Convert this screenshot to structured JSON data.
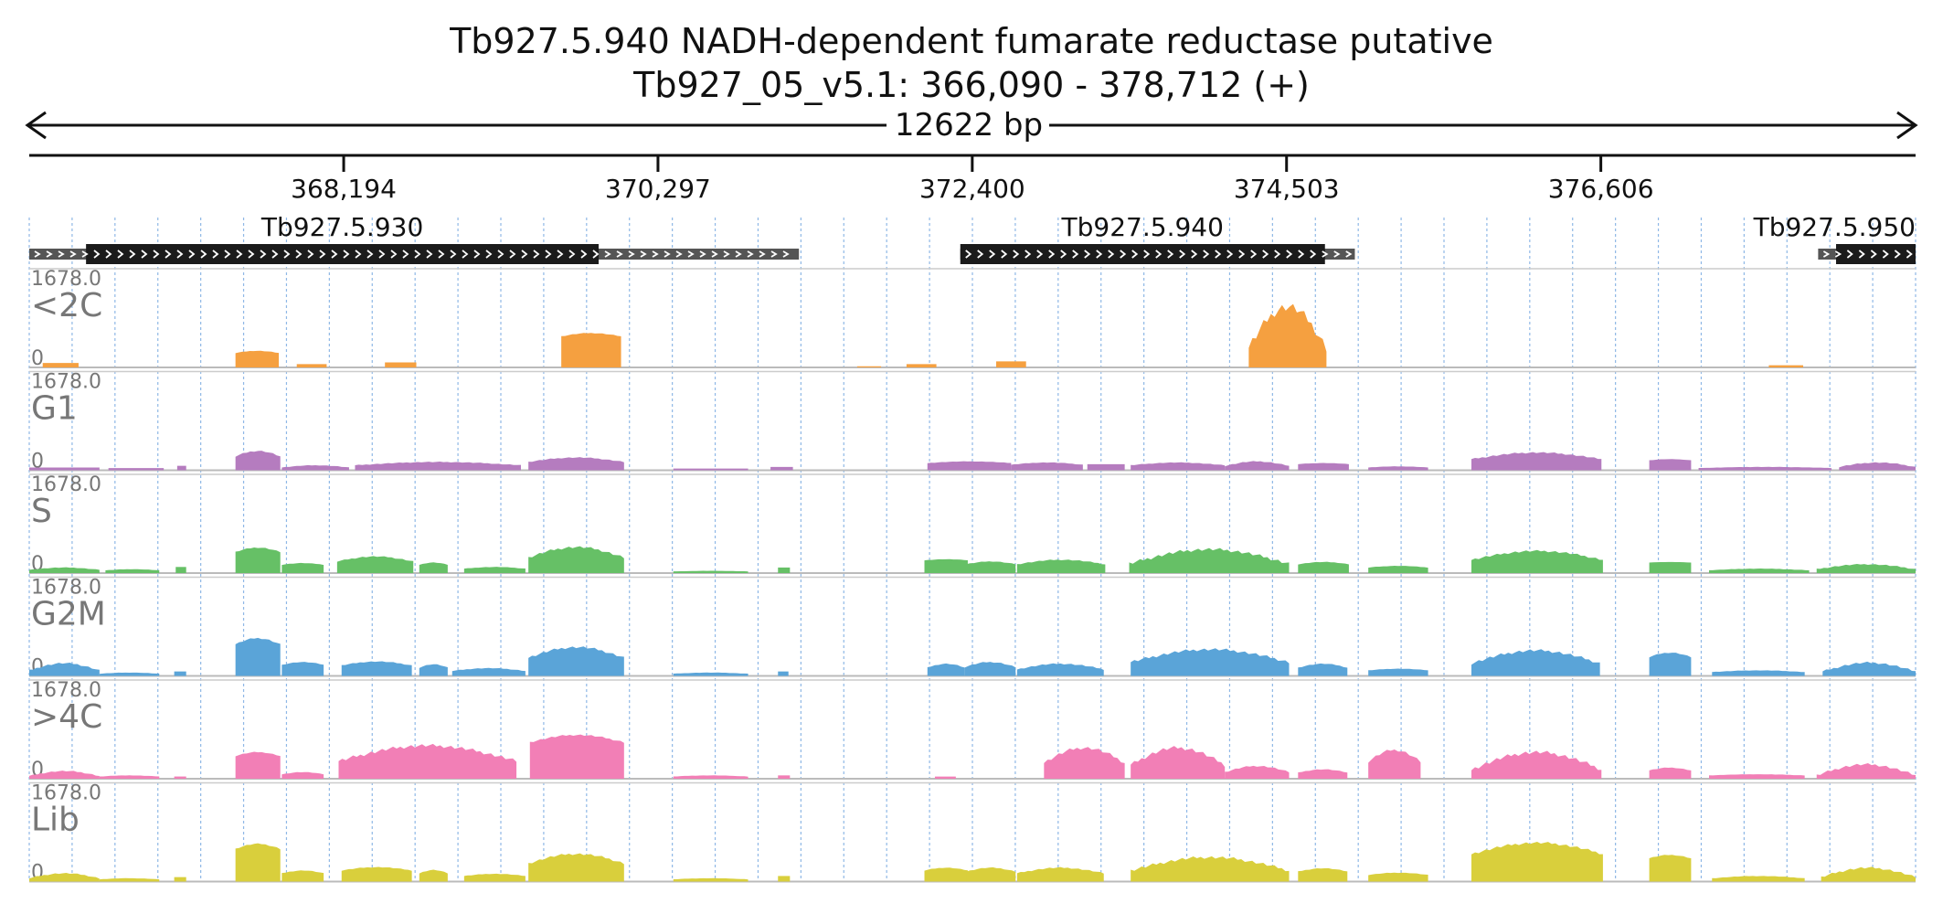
{
  "title_line1": "Tb927.5.940  NADH-dependent fumarate reductase  putative",
  "title_line2": "Tb927_05_v5.1: 366,090 - 378,712 (+)",
  "span_label": "12622 bp",
  "chart_data": {
    "type": "area",
    "region": {
      "chromosome": "Tb927_05_v5.1",
      "start": 366090,
      "end": 378712,
      "strand": "+"
    },
    "ticks": [
      368194,
      370297,
      372400,
      374503,
      376606
    ],
    "tick_labels": [
      "368,194",
      "370,297",
      "372,400",
      "374,503",
      "376,606"
    ],
    "genes": [
      {
        "name": "Tb927.5.930",
        "utr_start": 366090,
        "cds_start": 366470,
        "cds_end": 369900,
        "utr_end": 371240
      },
      {
        "name": "Tb927.5.940",
        "utr_start": 372320,
        "cds_start": 372320,
        "cds_end": 374760,
        "utr_end": 374960
      },
      {
        "name": "Tb927.5.950",
        "utr_start": 378060,
        "cds_start": 378180,
        "cds_end": 378712,
        "utr_end": 378712
      }
    ],
    "tracks": [
      {
        "name": "<2C",
        "max_label": "1678.0",
        "min_label": "0",
        "color": "#f5a040"
      },
      {
        "name": "G1",
        "max_label": "1678.0",
        "min_label": "0",
        "color": "#b57cbf"
      },
      {
        "name": "S",
        "max_label": "1678.0",
        "min_label": "0",
        "color": "#66c066"
      },
      {
        "name": "G2M",
        "max_label": "1678.0",
        "min_label": "0",
        "color": "#5aa4d8"
      },
      {
        "name": ">4C",
        "max_label": "1678.0",
        "min_label": "0",
        "color": "#f27fb6"
      },
      {
        "name": "Lib",
        "max_label": "1678.0",
        "min_label": "0",
        "color": "#d9cf3c"
      }
    ],
    "coverage": [
      [
        [
          366180,
          366420,
          80,
          80
        ],
        [
          367470,
          367760,
          260,
          300
        ],
        [
          367880,
          368080,
          60,
          60
        ],
        [
          368470,
          368680,
          90,
          90
        ],
        [
          369650,
          370050,
          560,
          620
        ],
        [
          371630,
          371790,
          20,
          20
        ],
        [
          371960,
          372160,
          60,
          60
        ],
        [
          372560,
          372760,
          110,
          110
        ],
        [
          374250,
          374770,
          360,
          1100
        ],
        [
          377730,
          377960,
          40,
          40
        ]
      ],
      [
        [
          366090,
          366560,
          50,
          50
        ],
        [
          366620,
          366990,
          40,
          40
        ],
        [
          367080,
          367140,
          80,
          80
        ],
        [
          367470,
          367770,
          250,
          350
        ],
        [
          367780,
          368230,
          50,
          90
        ],
        [
          368270,
          369380,
          90,
          150
        ],
        [
          369430,
          370070,
          150,
          230
        ],
        [
          370400,
          370900,
          30,
          30
        ],
        [
          371050,
          371200,
          60,
          60
        ],
        [
          372100,
          372660,
          130,
          160
        ],
        [
          372660,
          373140,
          100,
          140
        ],
        [
          373170,
          373420,
          110,
          110
        ],
        [
          373460,
          374090,
          90,
          140
        ],
        [
          374090,
          374520,
          80,
          160
        ],
        [
          374580,
          374920,
          110,
          130
        ],
        [
          375050,
          375450,
          50,
          70
        ],
        [
          375740,
          376610,
          200,
          320
        ],
        [
          376930,
          377210,
          180,
          200
        ],
        [
          377260,
          378150,
          40,
          60
        ],
        [
          378200,
          378712,
          60,
          140
        ]
      ],
      [
        [
          366090,
          366560,
          60,
          100
        ],
        [
          366600,
          366960,
          50,
          70
        ],
        [
          367070,
          367140,
          110,
          110
        ],
        [
          367470,
          367770,
          380,
          460
        ],
        [
          367780,
          368060,
          150,
          180
        ],
        [
          368150,
          368660,
          210,
          300
        ],
        [
          368700,
          368890,
          150,
          190
        ],
        [
          369000,
          369410,
          80,
          110
        ],
        [
          369430,
          370070,
          280,
          470
        ],
        [
          370400,
          370900,
          30,
          40
        ],
        [
          371100,
          371180,
          100,
          100
        ],
        [
          372080,
          372370,
          230,
          250
        ],
        [
          372360,
          372690,
          160,
          210
        ],
        [
          372700,
          373290,
          160,
          240
        ],
        [
          373450,
          374520,
          170,
          430
        ],
        [
          374580,
          374920,
          160,
          200
        ],
        [
          375050,
          375450,
          100,
          130
        ],
        [
          375740,
          376620,
          240,
          400
        ],
        [
          376930,
          377210,
          190,
          200
        ],
        [
          377330,
          378000,
          50,
          80
        ],
        [
          378050,
          378712,
          70,
          160
        ]
      ],
      [
        [
          366090,
          366560,
          100,
          230
        ],
        [
          366560,
          366960,
          40,
          60
        ],
        [
          367060,
          367140,
          80,
          80
        ],
        [
          367470,
          367770,
          570,
          680
        ],
        [
          367780,
          368060,
          200,
          250
        ],
        [
          368180,
          368650,
          190,
          260
        ],
        [
          368700,
          368890,
          150,
          210
        ],
        [
          368920,
          369410,
          90,
          140
        ],
        [
          369430,
          370070,
          330,
          520
        ],
        [
          370400,
          370900,
          40,
          60
        ],
        [
          371100,
          371170,
          80,
          80
        ],
        [
          372100,
          372350,
          150,
          220
        ],
        [
          372350,
          372690,
          160,
          250
        ],
        [
          372700,
          373280,
          120,
          220
        ],
        [
          373460,
          374520,
          250,
          480
        ],
        [
          374580,
          374910,
          150,
          220
        ],
        [
          375050,
          375450,
          100,
          130
        ],
        [
          375740,
          376600,
          230,
          460
        ],
        [
          376930,
          377210,
          340,
          420
        ],
        [
          377350,
          377970,
          70,
          100
        ],
        [
          378090,
          378712,
          80,
          240
        ]
      ],
      [
        [
          366090,
          366560,
          50,
          140
        ],
        [
          366560,
          366960,
          40,
          60
        ],
        [
          367060,
          367140,
          40,
          40
        ],
        [
          367470,
          367770,
          410,
          480
        ],
        [
          367780,
          368060,
          80,
          120
        ],
        [
          368160,
          369350,
          320,
          600
        ],
        [
          369440,
          370070,
          660,
          790
        ],
        [
          370400,
          370900,
          40,
          60
        ],
        [
          371100,
          371180,
          60,
          60
        ],
        [
          372150,
          372290,
          40,
          40
        ],
        [
          372880,
          373420,
          290,
          560
        ],
        [
          373460,
          374090,
          250,
          560
        ],
        [
          374090,
          374520,
          120,
          230
        ],
        [
          374580,
          374910,
          110,
          170
        ],
        [
          375050,
          375400,
          310,
          520
        ],
        [
          375740,
          376610,
          170,
          480
        ],
        [
          376930,
          377210,
          150,
          200
        ],
        [
          377330,
          377970,
          60,
          80
        ],
        [
          378050,
          378712,
          60,
          260
        ]
      ],
      [
        [
          366090,
          366560,
          60,
          150
        ],
        [
          366560,
          366960,
          40,
          60
        ],
        [
          367060,
          367140,
          80,
          80
        ],
        [
          367470,
          367770,
          590,
          680
        ],
        [
          367780,
          368060,
          150,
          200
        ],
        [
          368180,
          368650,
          200,
          260
        ],
        [
          368700,
          368890,
          150,
          210
        ],
        [
          369000,
          369410,
          100,
          140
        ],
        [
          369430,
          370070,
          330,
          500
        ],
        [
          370400,
          370900,
          40,
          60
        ],
        [
          371100,
          371180,
          100,
          100
        ],
        [
          372080,
          372370,
          200,
          250
        ],
        [
          372360,
          372690,
          180,
          250
        ],
        [
          372700,
          373280,
          150,
          250
        ],
        [
          373460,
          374520,
          200,
          440
        ],
        [
          374580,
          374910,
          180,
          240
        ],
        [
          375050,
          375450,
          120,
          160
        ],
        [
          375740,
          376620,
          500,
          700
        ],
        [
          376930,
          377210,
          420,
          480
        ],
        [
          377350,
          377970,
          60,
          100
        ],
        [
          378080,
          378712,
          80,
          250
        ]
      ]
    ]
  }
}
